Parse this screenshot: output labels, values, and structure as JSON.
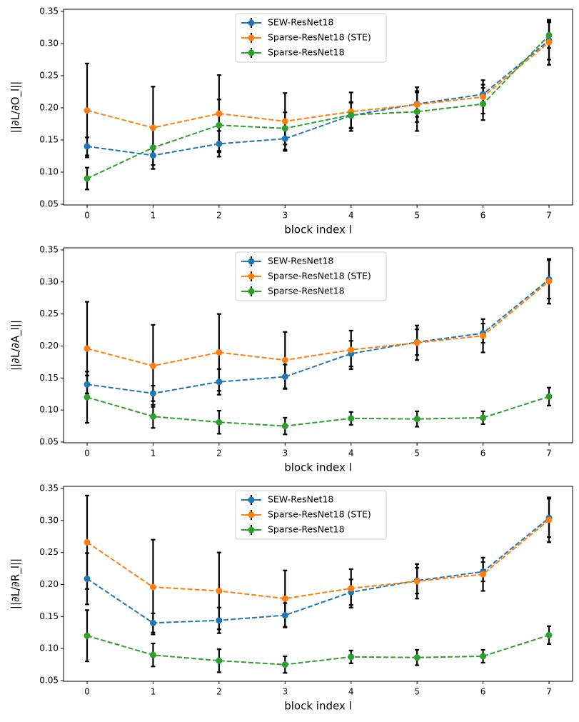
{
  "chart_data": [
    {
      "type": "line",
      "xlabel": "block index l",
      "ylabel": "||∂L/∂O_l||",
      "xlim": [
        -0.357,
        7.357
      ],
      "xticks": [
        0,
        1,
        2,
        3,
        4,
        5,
        6,
        7
      ],
      "ylim": [
        0.0489,
        0.3533
      ],
      "yticks": [
        0.05,
        {
          "value": 0.1,
          "label": "0.10"
        },
        0.15,
        {
          "value": 0.2,
          "label": "0.20"
        },
        0.25,
        {
          "value": 0.3,
          "label": "0.30"
        },
        0.35
      ],
      "legend": "upper center",
      "x": [
        0,
        1,
        2,
        3,
        4,
        5,
        6,
        7
      ],
      "series": [
        {
          "name": "SEW-ResNet18",
          "color": "#1f77b4",
          "values": [
            0.14,
            0.126,
            0.144,
            0.152,
            0.188,
            0.206,
            0.221,
            0.305
          ],
          "errors": [
            0.014,
            0.015,
            0.02,
            0.019,
            0.02,
            0.02,
            0.015,
            0.03
          ]
        },
        {
          "name": "Sparse-ResNet18 (STE)",
          "color": "#ff7f0e",
          "values": [
            0.196,
            0.169,
            0.191,
            0.179,
            0.194,
            0.205,
            0.217,
            0.302
          ],
          "errors": [
            0.073,
            0.064,
            0.06,
            0.044,
            0.03,
            0.027,
            0.026,
            0.035
          ]
        },
        {
          "name": "Sparse-ResNet18",
          "color": "#2ca02c",
          "values": [
            0.09,
            0.138,
            0.173,
            0.168,
            0.189,
            0.194,
            0.206,
            0.313
          ],
          "errors": [
            0.017,
            0.033,
            0.04,
            0.025,
            0.02,
            0.03,
            0.025,
            0.02
          ]
        }
      ]
    },
    {
      "type": "line",
      "xlabel": "block index l",
      "ylabel": "||∂L/∂A_l||",
      "xlim": [
        -0.357,
        7.357
      ],
      "xticks": [
        0,
        1,
        2,
        3,
        4,
        5,
        6,
        7
      ],
      "ylim": [
        0.0489,
        0.3533
      ],
      "yticks": [
        0.05,
        {
          "value": 0.1,
          "label": "0.10"
        },
        0.15,
        {
          "value": 0.2,
          "label": "0.20"
        },
        0.25,
        {
          "value": 0.3,
          "label": "0.30"
        },
        0.35
      ],
      "legend": "upper center",
      "x": [
        0,
        1,
        2,
        3,
        4,
        5,
        6,
        7
      ],
      "series": [
        {
          "name": "SEW-ResNet18",
          "color": "#1f77b4",
          "values": [
            0.14,
            0.126,
            0.144,
            0.152,
            0.188,
            0.206,
            0.22,
            0.304
          ],
          "errors": [
            0.014,
            0.012,
            0.02,
            0.019,
            0.02,
            0.02,
            0.015,
            0.03
          ]
        },
        {
          "name": "Sparse-ResNet18 (STE)",
          "color": "#ff7f0e",
          "values": [
            0.196,
            0.169,
            0.19,
            0.178,
            0.194,
            0.205,
            0.216,
            0.301
          ],
          "errors": [
            0.073,
            0.064,
            0.06,
            0.044,
            0.03,
            0.027,
            0.026,
            0.035
          ]
        },
        {
          "name": "Sparse-ResNet18",
          "color": "#2ca02c",
          "values": [
            0.12,
            0.09,
            0.081,
            0.075,
            0.087,
            0.086,
            0.088,
            0.121
          ],
          "errors": [
            0.04,
            0.018,
            0.018,
            0.013,
            0.01,
            0.012,
            0.01,
            0.014
          ]
        }
      ]
    },
    {
      "type": "line",
      "xlabel": "block index l",
      "ylabel": "||∂L/∂R_l||",
      "xlim": [
        -0.357,
        7.357
      ],
      "xticks": [
        0,
        1,
        2,
        3,
        4,
        5,
        6,
        7
      ],
      "ylim": [
        0.0489,
        0.3533
      ],
      "yticks": [
        0.05,
        {
          "value": 0.1,
          "label": "0.10"
        },
        0.15,
        {
          "value": 0.2,
          "label": "0.20"
        },
        0.25,
        {
          "value": 0.3,
          "label": "0.30"
        },
        0.35
      ],
      "legend": "upper center",
      "x": [
        0,
        1,
        2,
        3,
        4,
        5,
        6,
        7
      ],
      "series": [
        {
          "name": "SEW-ResNet18",
          "color": "#1f77b4",
          "values": [
            0.209,
            0.14,
            0.144,
            0.152,
            0.188,
            0.206,
            0.22,
            0.304
          ],
          "errors": [
            0.04,
            0.015,
            0.02,
            0.019,
            0.02,
            0.02,
            0.015,
            0.03
          ]
        },
        {
          "name": "Sparse-ResNet18 (STE)",
          "color": "#ff7f0e",
          "values": [
            0.266,
            0.196,
            0.19,
            0.178,
            0.194,
            0.205,
            0.216,
            0.301
          ],
          "errors": [
            0.073,
            0.074,
            0.06,
            0.044,
            0.03,
            0.027,
            0.026,
            0.035
          ]
        },
        {
          "name": "Sparse-ResNet18",
          "color": "#2ca02c",
          "values": [
            0.12,
            0.09,
            0.081,
            0.075,
            0.087,
            0.086,
            0.088,
            0.121
          ],
          "errors": [
            0.04,
            0.018,
            0.018,
            0.013,
            0.01,
            0.012,
            0.01,
            0.014
          ]
        }
      ]
    }
  ]
}
